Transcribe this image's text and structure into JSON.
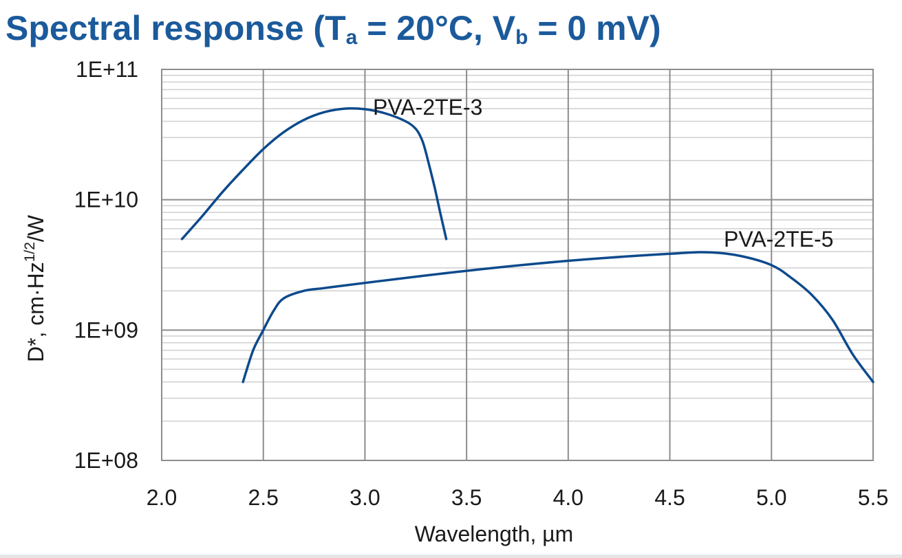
{
  "title": {
    "prefix": "Spectral response (T",
    "ta_sub": "a",
    "middle": " = 20°C, V",
    "vb_sub": "b",
    "suffix": " = 0 mV)"
  },
  "colors": {
    "title": "#1b5a9b",
    "series": "#0d4a8c",
    "grid_major": "#8c8c8c",
    "grid_minor": "#cfcfcf",
    "text": "#1a1a1a"
  },
  "chart_data": {
    "type": "line",
    "title": "Spectral response (Ta = 20°C, Vb = 0 mV)",
    "xlabel": "Wavelength, µm",
    "ylabel": {
      "main": "D*, cm·Hz",
      "sup": "1/2",
      "tail": "/W"
    },
    "xlim": [
      2.0,
      5.5
    ],
    "ylim": [
      100000000.0,
      100000000000.0
    ],
    "yscale": "log",
    "x_ticks": [
      2.0,
      2.5,
      3.0,
      3.5,
      4.0,
      4.5,
      5.0,
      5.5
    ],
    "x_tick_labels": [
      "2.0",
      "2.5",
      "3.0",
      "3.5",
      "4.0",
      "4.5",
      "5.0",
      "5.5"
    ],
    "y_ticks": [
      100000000.0,
      1000000000.0,
      10000000000.0,
      100000000000.0
    ],
    "y_tick_labels": [
      "1E+08",
      "1E+09",
      "1E+10",
      "1E+11"
    ],
    "grid": true,
    "series": [
      {
        "name": "PVA-2TE-3",
        "x": [
          2.1,
          2.2,
          2.3,
          2.4,
          2.5,
          2.6,
          2.7,
          2.8,
          2.9,
          3.0,
          3.1,
          3.2,
          3.25,
          3.28,
          3.3,
          3.34,
          3.37,
          3.4
        ],
        "values": [
          5000000000.0,
          7500000000.0,
          11500000000.0,
          17000000000.0,
          24500000000.0,
          33000000000.0,
          41000000000.0,
          47000000000.0,
          50000000000.0,
          49500000000.0,
          46000000000.0,
          40000000000.0,
          35000000000.0,
          29000000000.0,
          23000000000.0,
          13000000000.0,
          8000000000.0,
          5000000000.0
        ]
      },
      {
        "name": "PVA-2TE-5",
        "x": [
          2.4,
          2.45,
          2.5,
          2.55,
          2.6,
          2.7,
          2.8,
          3.0,
          3.5,
          4.0,
          4.5,
          4.7,
          4.85,
          5.0,
          5.1,
          5.2,
          5.3,
          5.4,
          5.5
        ],
        "values": [
          400000000.0,
          700000000.0,
          1000000000.0,
          1400000000.0,
          1750000000.0,
          2000000000.0,
          2100000000.0,
          2300000000.0,
          2850000000.0,
          3400000000.0,
          3850000000.0,
          3950000000.0,
          3700000000.0,
          3150000000.0,
          2500000000.0,
          1850000000.0,
          1200000000.0,
          650000000.0,
          400000000.0
        ]
      }
    ],
    "annotations": [
      {
        "text": "PVA-2TE-3",
        "series": "PVA-2TE-3"
      },
      {
        "text": "PVA-2TE-5",
        "series": "PVA-2TE-5"
      }
    ]
  }
}
